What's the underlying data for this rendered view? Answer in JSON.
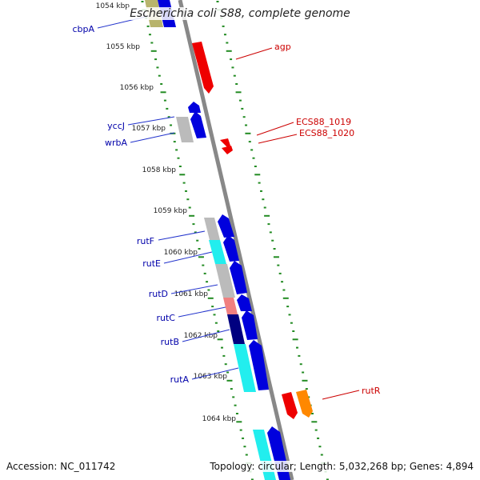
{
  "title": "Escherichia coli S88, complete genome",
  "footer": {
    "accession": "Accession: NC_011742",
    "summary": "Topology: circular; Length: 5,032,268 bp; Genes: 4,894"
  },
  "colors": {
    "backbone": "#888888",
    "tick": "#228b22",
    "label_left": "#0000aa",
    "label_right": "#cc0000",
    "leader_left": "#2233cc",
    "leader_right": "#cc0000"
  },
  "kbp_labels": [
    "1054 kbp",
    "1055 kbp",
    "1056 kbp",
    "1057 kbp",
    "1058 kbp",
    "1059 kbp",
    "1060 kbp",
    "1061 kbp",
    "1062 kbp",
    "1063 kbp",
    "1064 kbp"
  ],
  "left_labels": [
    "cbpA",
    "yccJ",
    "wrbA",
    "rutF",
    "rutE",
    "rutD",
    "rutC",
    "rutB",
    "rutA"
  ],
  "right_labels": [
    "agp",
    "ECS88_1019",
    "ECS88_1020",
    "rutR"
  ],
  "features": [
    {
      "track": "left_outer",
      "kind": "rect",
      "color": "#b8b46c"
    },
    {
      "track": "left_inner",
      "kind": "rect",
      "color": "#0000dd"
    },
    {
      "track": "left_outer",
      "kind": "rect",
      "color": "#bbbbbb"
    },
    {
      "track": "left_inner",
      "kind": "arrow",
      "color": "#0000dd"
    },
    {
      "track": "left_inner",
      "kind": "arrow",
      "color": "#0000dd"
    },
    {
      "track": "left_outer",
      "kind": "rect",
      "color": "#bbbbbb"
    },
    {
      "track": "left_inner",
      "kind": "arrow",
      "color": "#0000dd"
    },
    {
      "track": "left_outer",
      "kind": "rect",
      "color": "#22eeee"
    },
    {
      "track": "left_inner",
      "kind": "arrow",
      "color": "#0000dd"
    },
    {
      "track": "left_outer",
      "kind": "rect",
      "color": "#bbbbbb"
    },
    {
      "track": "left_inner",
      "kind": "arrow",
      "color": "#0000dd"
    },
    {
      "track": "left_outer",
      "kind": "rect",
      "color": "#f08080"
    },
    {
      "track": "left_inner",
      "kind": "arrow",
      "color": "#0000dd"
    },
    {
      "track": "left_outer",
      "kind": "rect",
      "color": "#000080"
    },
    {
      "track": "left_inner",
      "kind": "arrow",
      "color": "#0000dd"
    },
    {
      "track": "left_outer",
      "kind": "rect",
      "color": "#22eeee"
    },
    {
      "track": "left_inner",
      "kind": "arrow",
      "color": "#0000dd"
    },
    {
      "track": "left_outer",
      "kind": "rect",
      "color": "#22eeee"
    },
    {
      "track": "left_inner",
      "kind": "arrow",
      "color": "#0000dd"
    },
    {
      "track": "right_inner",
      "kind": "arrow",
      "color": "#ee0000"
    },
    {
      "track": "right_inner",
      "kind": "arrow",
      "color": "#ee0000"
    },
    {
      "track": "right_inner",
      "kind": "arrow",
      "color": "#ee0000"
    },
    {
      "track": "right_inner",
      "kind": "arrow",
      "color": "#ee0000"
    },
    {
      "track": "right_outer",
      "kind": "arrow",
      "color": "#ff8800"
    }
  ]
}
